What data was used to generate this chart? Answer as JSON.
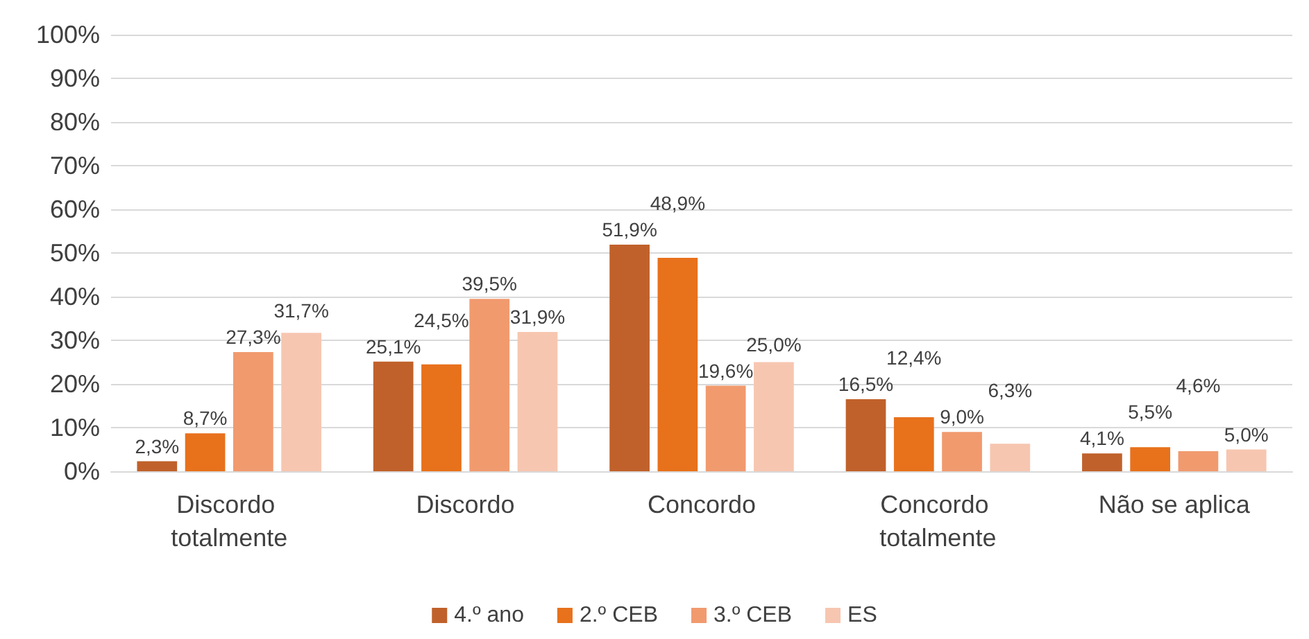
{
  "chart_data": {
    "type": "bar",
    "categories": [
      "Discordo totalmente",
      "Discordo",
      "Concordo",
      "Concordo totalmente",
      "Não se aplica"
    ],
    "series": [
      {
        "name": "4.º ano",
        "color": "#c0612b",
        "values": [
          2.3,
          25.1,
          51.9,
          16.5,
          4.1
        ],
        "value_labels": [
          "2,3%",
          "25,1%",
          "51,9%",
          "16,5%",
          "4,1%"
        ]
      },
      {
        "name": "2.º CEB",
        "color": "#e8711c",
        "values": [
          8.7,
          24.5,
          48.9,
          12.4,
          5.5
        ],
        "value_labels": [
          "8,7%",
          "24,5%",
          "48,9%",
          "12,4%",
          "5,5%"
        ]
      },
      {
        "name": "3.º CEB",
        "color": "#f19a6e",
        "values": [
          27.3,
          39.5,
          19.6,
          9.0,
          4.6
        ],
        "value_labels": [
          "27,3%",
          "39,5%",
          "19,6%",
          "9,0%",
          "4,6%"
        ]
      },
      {
        "name": "ES",
        "color": "#f7c6b0",
        "values": [
          31.7,
          31.9,
          25.0,
          6.3,
          5.0
        ],
        "value_labels": [
          "31,7%",
          "31,9%",
          "25,0%",
          "6,3%",
          "5,0%"
        ]
      }
    ],
    "ylim": [
      0,
      100
    ],
    "yticks": [
      {
        "value": 0,
        "label": "0%"
      },
      {
        "value": 10,
        "label": "10%"
      },
      {
        "value": 20,
        "label": "20%"
      },
      {
        "value": 30,
        "label": "30%"
      },
      {
        "value": 40,
        "label": "40%"
      },
      {
        "value": 50,
        "label": "50%"
      },
      {
        "value": 60,
        "label": "60%"
      },
      {
        "value": 70,
        "label": "70%"
      },
      {
        "value": 80,
        "label": "80%"
      },
      {
        "value": 90,
        "label": "90%"
      },
      {
        "value": 100,
        "label": "100%"
      }
    ],
    "grid": "y",
    "legend": "bottom"
  }
}
